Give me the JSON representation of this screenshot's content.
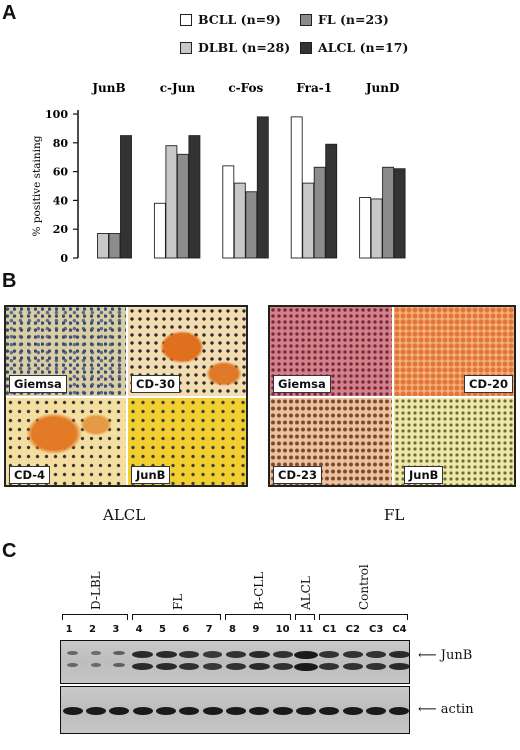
{
  "panels": {
    "a": "A",
    "b": "B",
    "c": "C"
  },
  "chart_data": {
    "type": "bar",
    "categories": [
      "JunB",
      "c-Jun",
      "c-Fos",
      "Fra-1",
      "JunD"
    ],
    "ylabel": "% positive staining",
    "ylim": [
      0,
      100
    ],
    "yticks": [
      0,
      20,
      40,
      60,
      80,
      100
    ],
    "legend_position": "top",
    "series": [
      {
        "name": "BCLL (n=9)",
        "color": "#ffffff",
        "values": [
          0,
          38,
          64,
          98,
          42
        ]
      },
      {
        "name": "DLBL (n=28)",
        "color": "#c8c8c8",
        "values": [
          17,
          78,
          52,
          52,
          41
        ]
      },
      {
        "name": "FL (n=23)",
        "color": "#8c8c8c",
        "values": [
          17,
          72,
          46,
          63,
          63
        ]
      },
      {
        "name": "ALCL (n=17)",
        "color": "#333333",
        "values": [
          85,
          85,
          98,
          79,
          62
        ]
      }
    ]
  },
  "panel_b": {
    "alcl": {
      "labels": [
        "Giemsa",
        "CD-30",
        "CD-4",
        "JunB"
      ],
      "caption": "ALCL"
    },
    "fl": {
      "labels": [
        "Giemsa",
        "CD-20",
        "CD-23",
        "JunB"
      ],
      "caption": "FL"
    }
  },
  "panel_c": {
    "groups": [
      "D-LBL",
      "FL",
      "B-CLL",
      "ALCL",
      "Control"
    ],
    "lanes": [
      "1",
      "2",
      "3",
      "4",
      "5",
      "6",
      "7",
      "8",
      "9",
      "10",
      "11",
      "C1",
      "C2",
      "C3",
      "C4"
    ],
    "junb_label": "JunB",
    "actin_label": "actin"
  }
}
